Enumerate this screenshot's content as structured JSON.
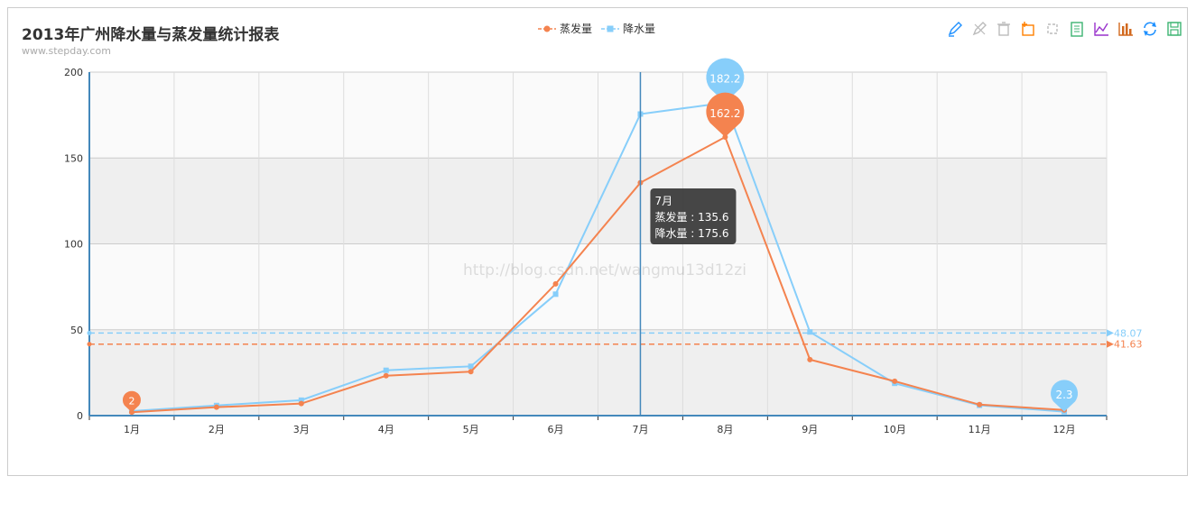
{
  "header": {
    "title": "2013年广州降水量与蒸发量统计报表",
    "subtitle": "www.stepday.com"
  },
  "legend": [
    {
      "name": "蒸发量",
      "color": "#f4834f"
    },
    {
      "name": "降水量",
      "color": "#87cefa"
    }
  ],
  "toolbox": [
    {
      "name": "mark-icon",
      "color": "#1e90ff"
    },
    {
      "name": "mark-undo-icon",
      "color": "#bbbbbb"
    },
    {
      "name": "mark-clear-icon",
      "color": "#bbbbbb"
    },
    {
      "name": "data-zoom-icon",
      "color": "#ff7f00"
    },
    {
      "name": "data-zoom-reset-icon",
      "color": "#bbbbbb"
    },
    {
      "name": "data-view-icon",
      "color": "#3cb371"
    },
    {
      "name": "line-chart-icon",
      "color": "#9932cc"
    },
    {
      "name": "bar-chart-icon",
      "color": "#d2691e"
    },
    {
      "name": "restore-icon",
      "color": "#1e90ff"
    },
    {
      "name": "save-image-icon",
      "color": "#3cb371"
    }
  ],
  "watermark": "http://blog.csdn.net/wangmu13d12zi",
  "chart_data": {
    "type": "line",
    "categories": [
      "1月",
      "2月",
      "3月",
      "4月",
      "5月",
      "6月",
      "7月",
      "8月",
      "9月",
      "10月",
      "11月",
      "12月"
    ],
    "series": [
      {
        "name": "蒸发量",
        "color": "#f4834f",
        "values": [
          2.0,
          4.9,
          7.0,
          23.2,
          25.6,
          76.7,
          135.6,
          162.2,
          32.6,
          20.0,
          6.4,
          3.3
        ],
        "mark_max": "162.2",
        "mark_min": "2",
        "average": "41.63"
      },
      {
        "name": "降水量",
        "color": "#87cefa",
        "values": [
          2.6,
          5.9,
          9.0,
          26.4,
          28.7,
          70.7,
          175.6,
          182.2,
          48.7,
          18.8,
          6.0,
          2.3
        ],
        "mark_max": "182.2",
        "mark_min": "2.3",
        "average": "48.07"
      }
    ],
    "ylim": [
      0,
      200
    ],
    "yticks": [
      "0",
      "50",
      "100",
      "150",
      "200"
    ],
    "tooltip": {
      "title": "7月",
      "lines": [
        "蒸发量 : 135.6",
        "降水量 : 175.6"
      ],
      "category_index": 6
    },
    "grid": true
  }
}
